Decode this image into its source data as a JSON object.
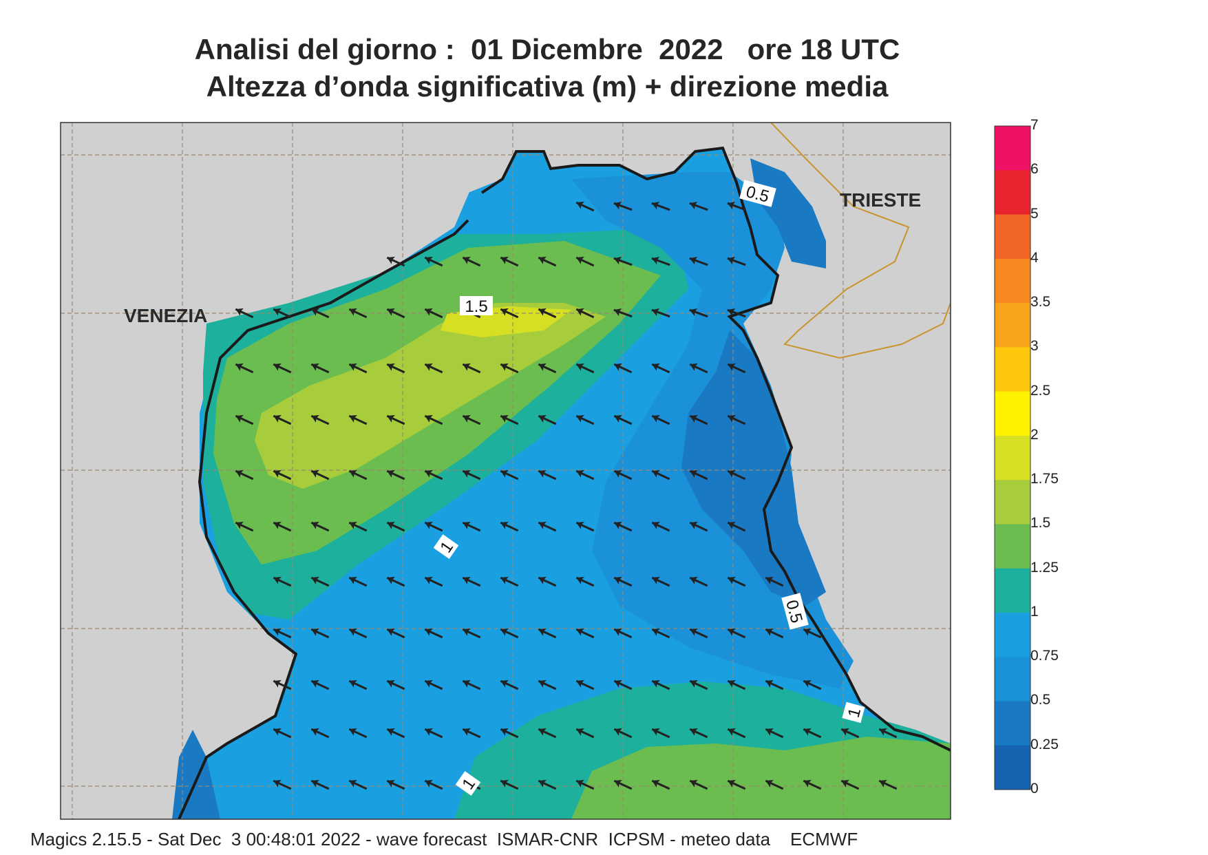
{
  "title": {
    "line1": "Analisi del giorno :  01 Dicembre  2022   ore 18 UTC",
    "line2": "Altezza d’onda significativa (m) + direzione media"
  },
  "places": [
    {
      "name": "VENEZIA"
    },
    {
      "name": "TRIESTE"
    }
  ],
  "contour_labels": [
    "1.5",
    "1",
    "1",
    "0.5",
    "0.5",
    "1"
  ],
  "legend": {
    "levels": [
      "7",
      "6",
      "5",
      "4",
      "3.5",
      "3",
      "2.5",
      "2",
      "1.75",
      "1.5",
      "1.25",
      "1",
      "0.75",
      "0.5",
      "0.25",
      "0"
    ],
    "colors": [
      "#ee1166",
      "#e8252e",
      "#f06426",
      "#f6881f",
      "#f9a51b",
      "#fdc80c",
      "#fff200",
      "#d7df23",
      "#a8cd3c",
      "#6cbd4f",
      "#1db09c",
      "#1a9fe0",
      "#1a91d8",
      "#1a79c3",
      "#1562b1"
    ]
  },
  "colors": {
    "land": "#d0d0d0",
    "coast": "#1a1a1a",
    "border": "#c9942e",
    "arrow": "#222222"
  },
  "footer": "Magics 2.15.5 - Sat Dec  3 00:48:01 2022 - wave forecast  ISMAR-CNR  ICPSM - meteo data    ECMWF"
}
